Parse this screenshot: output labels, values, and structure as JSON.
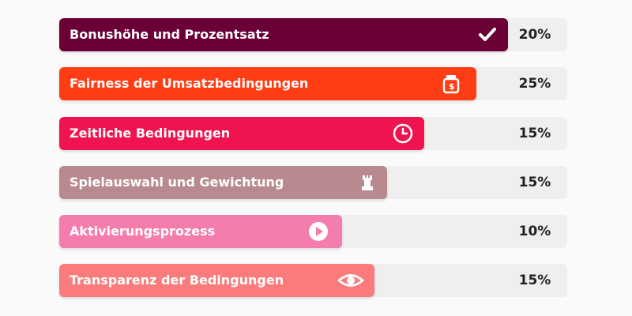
{
  "rows": [
    {
      "label": "Bonushöhe und Prozentsatz",
      "percent": "20%"
    },
    {
      "label": "Fairness der Umsatzbedingungen",
      "percent": "25%"
    },
    {
      "label": "Zeitliche Bedingungen",
      "percent": "15%"
    },
    {
      "label": "Spielauswahl und Gewichtung",
      "percent": "15%"
    },
    {
      "label": "Aktivierungsprozess",
      "percent": "10%"
    },
    {
      "label": "Transparenz der Bedingungen",
      "percent": "15%"
    }
  ]
}
